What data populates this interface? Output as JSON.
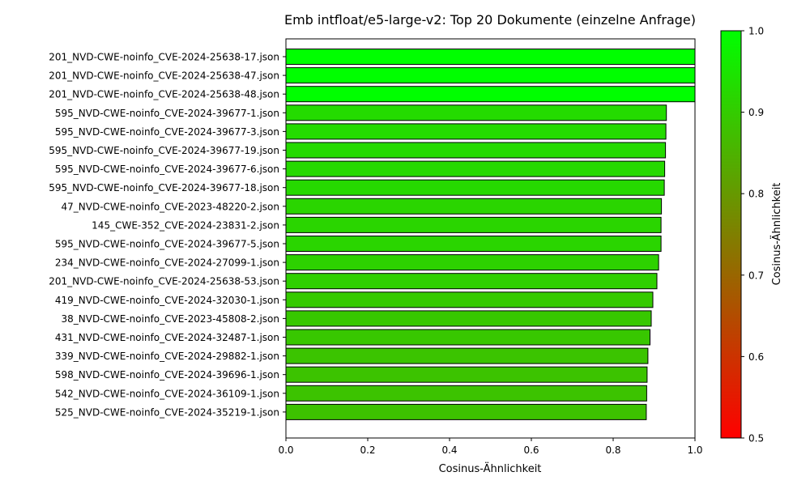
{
  "chart_data": {
    "type": "bar",
    "orientation": "horizontal",
    "title": "Emb intfloat/e5-large-v2: Top 20 Dokumente (einzelne Anfrage)",
    "xlabel": "Cosinus-Ähnlichkeit",
    "ylabel": "",
    "xlim": [
      0,
      1
    ],
    "xticks": [
      "0.0",
      "0.2",
      "0.4",
      "0.6",
      "0.8",
      "1.0"
    ],
    "categories": [
      "201_NVD-CWE-noinfo_CVE-2024-25638-17.json",
      "201_NVD-CWE-noinfo_CVE-2024-25638-47.json",
      "201_NVD-CWE-noinfo_CVE-2024-25638-48.json",
      "595_NVD-CWE-noinfo_CVE-2024-39677-1.json",
      "595_NVD-CWE-noinfo_CVE-2024-39677-3.json",
      "595_NVD-CWE-noinfo_CVE-2024-39677-19.json",
      "595_NVD-CWE-noinfo_CVE-2024-39677-6.json",
      "595_NVD-CWE-noinfo_CVE-2024-39677-18.json",
      "47_NVD-CWE-noinfo_CVE-2023-48220-2.json",
      "145_CWE-352_CVE-2024-23831-2.json",
      "595_NVD-CWE-noinfo_CVE-2024-39677-5.json",
      "234_NVD-CWE-noinfo_CVE-2024-27099-1.json",
      "201_NVD-CWE-noinfo_CVE-2024-25638-53.json",
      "419_NVD-CWE-noinfo_CVE-2024-32030-1.json",
      "38_NVD-CWE-noinfo_CVE-2023-45808-2.json",
      "431_NVD-CWE-noinfo_CVE-2024-32487-1.json",
      "339_NVD-CWE-noinfo_CVE-2024-29882-1.json",
      "598_NVD-CWE-noinfo_CVE-2024-39696-1.json",
      "542_NVD-CWE-noinfo_CVE-2024-36109-1.json",
      "525_NVD-CWE-noinfo_CVE-2024-35219-1.json"
    ],
    "values": [
      1.0,
      1.0,
      1.0,
      0.93,
      0.929,
      0.928,
      0.926,
      0.925,
      0.918,
      0.917,
      0.917,
      0.911,
      0.907,
      0.897,
      0.893,
      0.89,
      0.885,
      0.883,
      0.882,
      0.881
    ],
    "colorbar": {
      "label": "Cosinus-Ähnlichkeit",
      "min": 0.5,
      "max": 1.0,
      "ticks": [
        "0.5",
        "0.6",
        "0.7",
        "0.8",
        "0.9",
        "1.0"
      ],
      "color_low": "#ff0000",
      "color_high": "#00ff00"
    },
    "bar_edge_color": "#000000",
    "grid": false,
    "legend": "none"
  }
}
